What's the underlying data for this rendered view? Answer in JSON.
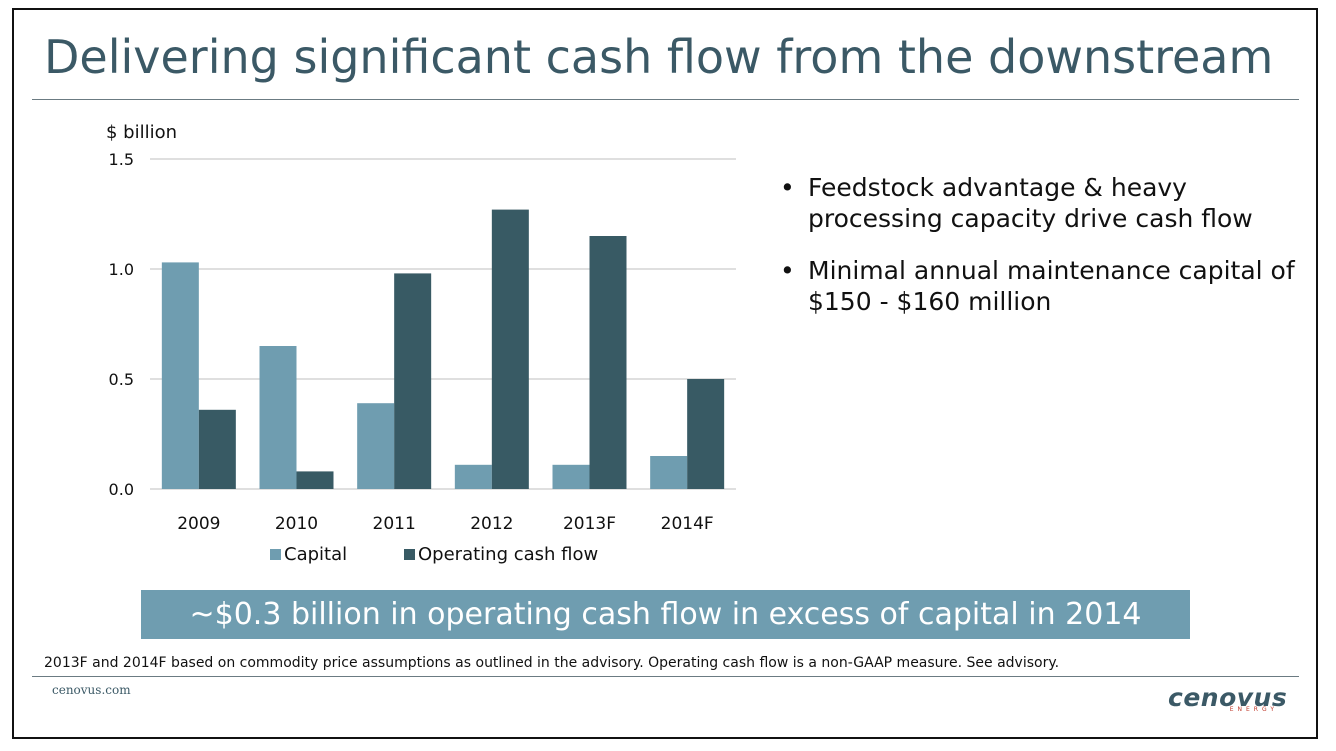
{
  "slide": {
    "title": "Delivering significant cash flow from the downstream",
    "bullets": [
      "Feedstock advantage & heavy processing capacity drive cash flow",
      "Minimal annual maintenance capital of $150 - $160 million"
    ],
    "callout": "~$0.3 billion in operating cash flow in excess of capital in 2014",
    "footnote": "2013F and 2014F based on commodity price assumptions as outlined in the advisory. Operating cash flow is a non-GAAP measure. See advisory.",
    "website": "cenovus.com",
    "logo_text": "cenovus",
    "logo_subtext": "ENERGY",
    "bullet_glyph": "•"
  },
  "colors": {
    "title": "#3b5966",
    "capital": "#6f9db0",
    "operating_cash_flow": "#385a64",
    "callout_bg": "#6f9db0",
    "grid": "#bfbfbf"
  },
  "chart_data": {
    "type": "bar",
    "ylabel": "$ billion",
    "categories": [
      "2009",
      "2010",
      "2011",
      "2012",
      "2013F",
      "2014F"
    ],
    "series": [
      {
        "name": "Capital",
        "values": [
          1.03,
          0.65,
          0.39,
          0.11,
          0.11,
          0.15
        ]
      },
      {
        "name": "Operating cash flow",
        "values": [
          0.36,
          0.08,
          0.98,
          1.27,
          1.15,
          0.5
        ]
      }
    ],
    "ylim": [
      0,
      1.5
    ],
    "yticks": [
      "0.0",
      "0.5",
      "1.0",
      "1.5"
    ],
    "grid": true,
    "legend": "bottom"
  }
}
